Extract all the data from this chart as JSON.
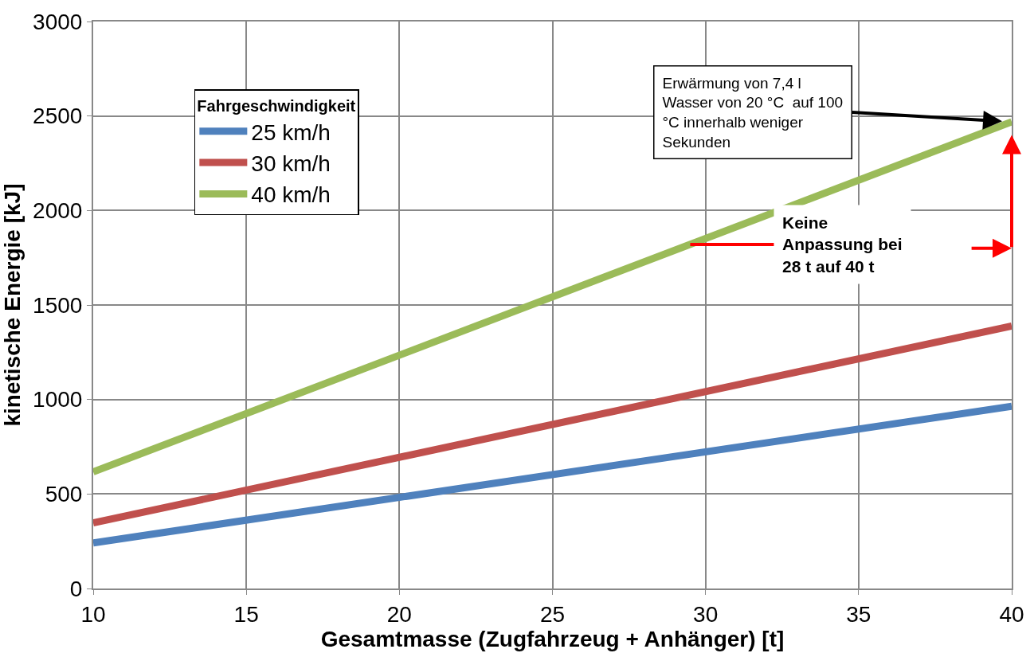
{
  "chart_data": {
    "type": "line",
    "xlabel": "Gesamtmasse (Zugfahrzeug + Anhänger) [t]",
    "ylabel": "kinetische Energie [kJ]",
    "legend_title": "Fahrgeschwindigkeit",
    "x": [
      10,
      40
    ],
    "series": [
      {
        "name": "25 km/h",
        "color": "#4f81bd",
        "values": [
          241,
          964
        ]
      },
      {
        "name": "30 km/h",
        "color": "#c0504d",
        "values": [
          347,
          1389
        ]
      },
      {
        "name": "40 km/h",
        "color": "#9bbb59",
        "values": [
          617,
          2469
        ]
      }
    ],
    "annotations": [
      {
        "text": "Erwärmung von 7,4 l\nWasser von 20 °C  auf 100\n°C innerhalb weniger\nSekunden",
        "x": 40,
        "y": 2469
      },
      {
        "text": "Keine\nAnpassung bei\n28 t auf 40 t",
        "x": 29.5,
        "y": 1820
      }
    ],
    "xlim": [
      10,
      40
    ],
    "xticks": [
      10,
      15,
      20,
      25,
      30,
      35,
      40
    ],
    "ylim": [
      0,
      3000
    ],
    "yticks": [
      0,
      500,
      1000,
      1500,
      2000,
      2500,
      3000
    ],
    "grid": true,
    "legend": "top left",
    "marker": "none",
    "line_style": "solid"
  }
}
